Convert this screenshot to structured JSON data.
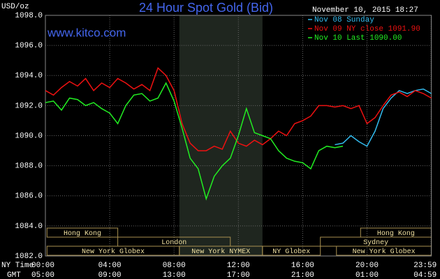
{
  "chart_data": {
    "type": "line",
    "title": "24 Hour Spot Gold (Bid)",
    "subtitle": "www.kitco.com",
    "y_label": "USD/oz",
    "timestamp": "November 10, 2015 18:27",
    "x_row_labels": [
      "NY Time",
      "GMT"
    ],
    "x": [
      0,
      0.5,
      1,
      1.5,
      2,
      2.5,
      3,
      3.5,
      4,
      4.5,
      5,
      5.5,
      6,
      6.5,
      7,
      7.5,
      8,
      8.5,
      9,
      9.5,
      10,
      10.5,
      11,
      11.5,
      12,
      12.5,
      13,
      13.5,
      14,
      14.5,
      15,
      15.5,
      16,
      16.5,
      17,
      17.5,
      18,
      18.5,
      19,
      19.5,
      20,
      20.5,
      21,
      21.5,
      22,
      22.5,
      23,
      23.5,
      24
    ],
    "series": [
      {
        "name": "Nov 08 Sunday",
        "color": "#33bbee",
        "values": [
          null,
          null,
          null,
          null,
          null,
          null,
          null,
          null,
          null,
          null,
          null,
          null,
          null,
          null,
          null,
          null,
          null,
          null,
          null,
          null,
          null,
          null,
          null,
          null,
          null,
          null,
          null,
          null,
          null,
          null,
          null,
          null,
          null,
          null,
          null,
          null,
          1089.4,
          1089.5,
          1090.0,
          1089.6,
          1089.3,
          1090.3,
          1091.8,
          1092.5,
          1093.0,
          1092.8,
          1093.0,
          1093.1,
          1092.8
        ]
      },
      {
        "name": "Nov 09 NY close 1091.90",
        "color": "#ee1111",
        "values": [
          1093.0,
          1092.7,
          1093.2,
          1093.6,
          1093.3,
          1093.8,
          1093.0,
          1093.5,
          1093.2,
          1093.8,
          1093.5,
          1093.1,
          1093.4,
          1093.0,
          1094.5,
          1094.0,
          1093.0,
          1090.8,
          1089.5,
          1089.0,
          1089.0,
          1089.3,
          1089.1,
          1090.3,
          1089.5,
          1089.3,
          1089.7,
          1089.4,
          1089.8,
          1090.3,
          1090.0,
          1090.8,
          1091.0,
          1091.3,
          1092.0,
          1092.0,
          1091.9,
          1092.0,
          1091.8,
          1092.0,
          1090.8,
          1091.2,
          1092.0,
          1092.7,
          1092.9,
          1092.6,
          1093.0,
          1092.8,
          1092.5
        ]
      },
      {
        "name": "Nov 10 Last 1090.00",
        "color": "#22ee22",
        "values": [
          1092.2,
          1092.3,
          1091.7,
          1092.5,
          1092.4,
          1092.0,
          1092.2,
          1091.8,
          1091.5,
          1090.8,
          1092.0,
          1092.7,
          1092.8,
          1092.3,
          1092.5,
          1093.5,
          1092.3,
          1090.5,
          1088.5,
          1087.8,
          1085.8,
          1087.3,
          1088.0,
          1088.5,
          1090.0,
          1091.8,
          1090.2,
          1090.0,
          1089.8,
          1089.0,
          1088.5,
          1088.3,
          1088.2,
          1087.8,
          1089.0,
          1089.3,
          1089.2,
          1089.3,
          null,
          null,
          null,
          null,
          null,
          null,
          null,
          null,
          null,
          null,
          null
        ]
      }
    ],
    "xlim": [
      0,
      24
    ],
    "xticks": [
      {
        "value": 0,
        "label": "00:00"
      },
      {
        "value": 4,
        "label": "04:00"
      },
      {
        "value": 8,
        "label": "08:00"
      },
      {
        "value": 12,
        "label": "12:00"
      },
      {
        "value": 16,
        "label": "16:00"
      },
      {
        "value": 20,
        "label": "20:00"
      },
      {
        "value": 23.983,
        "label": "23:59"
      }
    ],
    "gmt_ticks": [
      {
        "value": 0,
        "label": "05:00"
      },
      {
        "value": 4,
        "label": "09:00"
      },
      {
        "value": 8,
        "label": "13:00"
      },
      {
        "value": 12,
        "label": "17:00"
      },
      {
        "value": 16,
        "label": "21:00"
      },
      {
        "value": 20,
        "label": "01:00"
      },
      {
        "value": 23.983,
        "label": "04:59"
      }
    ],
    "ylim": [
      1082,
      1098
    ],
    "yticks": [
      {
        "value": 1082,
        "label": "1082.0"
      },
      {
        "value": 1084,
        "label": "1084.0"
      },
      {
        "value": 1086,
        "label": "1086.0"
      },
      {
        "value": 1088,
        "label": "1088.0"
      },
      {
        "value": 1090,
        "label": "1090.0"
      },
      {
        "value": 1092,
        "label": "1092.0"
      },
      {
        "value": 1094,
        "label": "1094.0"
      },
      {
        "value": 1096,
        "label": "1096.0"
      },
      {
        "value": 1098,
        "label": "1098.0"
      }
    ],
    "grid": true,
    "shaded_range": [
      8.33,
      13.5
    ],
    "session_rows": [
      [
        {
          "label": "Hong Kong",
          "start": 0.1,
          "end": 4.5
        },
        {
          "label": "Hong Kong",
          "start": 19.6,
          "end": 24
        }
      ],
      [
        {
          "label": "London",
          "start": 4.5,
          "end": 11.5
        },
        {
          "label": "Sydney",
          "start": 17.1,
          "end": 24
        }
      ],
      [
        {
          "label": "New York Globex",
          "start": 0.1,
          "end": 8.33
        },
        {
          "label": "New York NYMEX",
          "start": 8.33,
          "end": 13.5
        },
        {
          "label": "NY Globex",
          "start": 13.5,
          "end": 17.1
        },
        {
          "label": "New York Globex",
          "start": 18.1,
          "end": 24
        }
      ]
    ]
  }
}
